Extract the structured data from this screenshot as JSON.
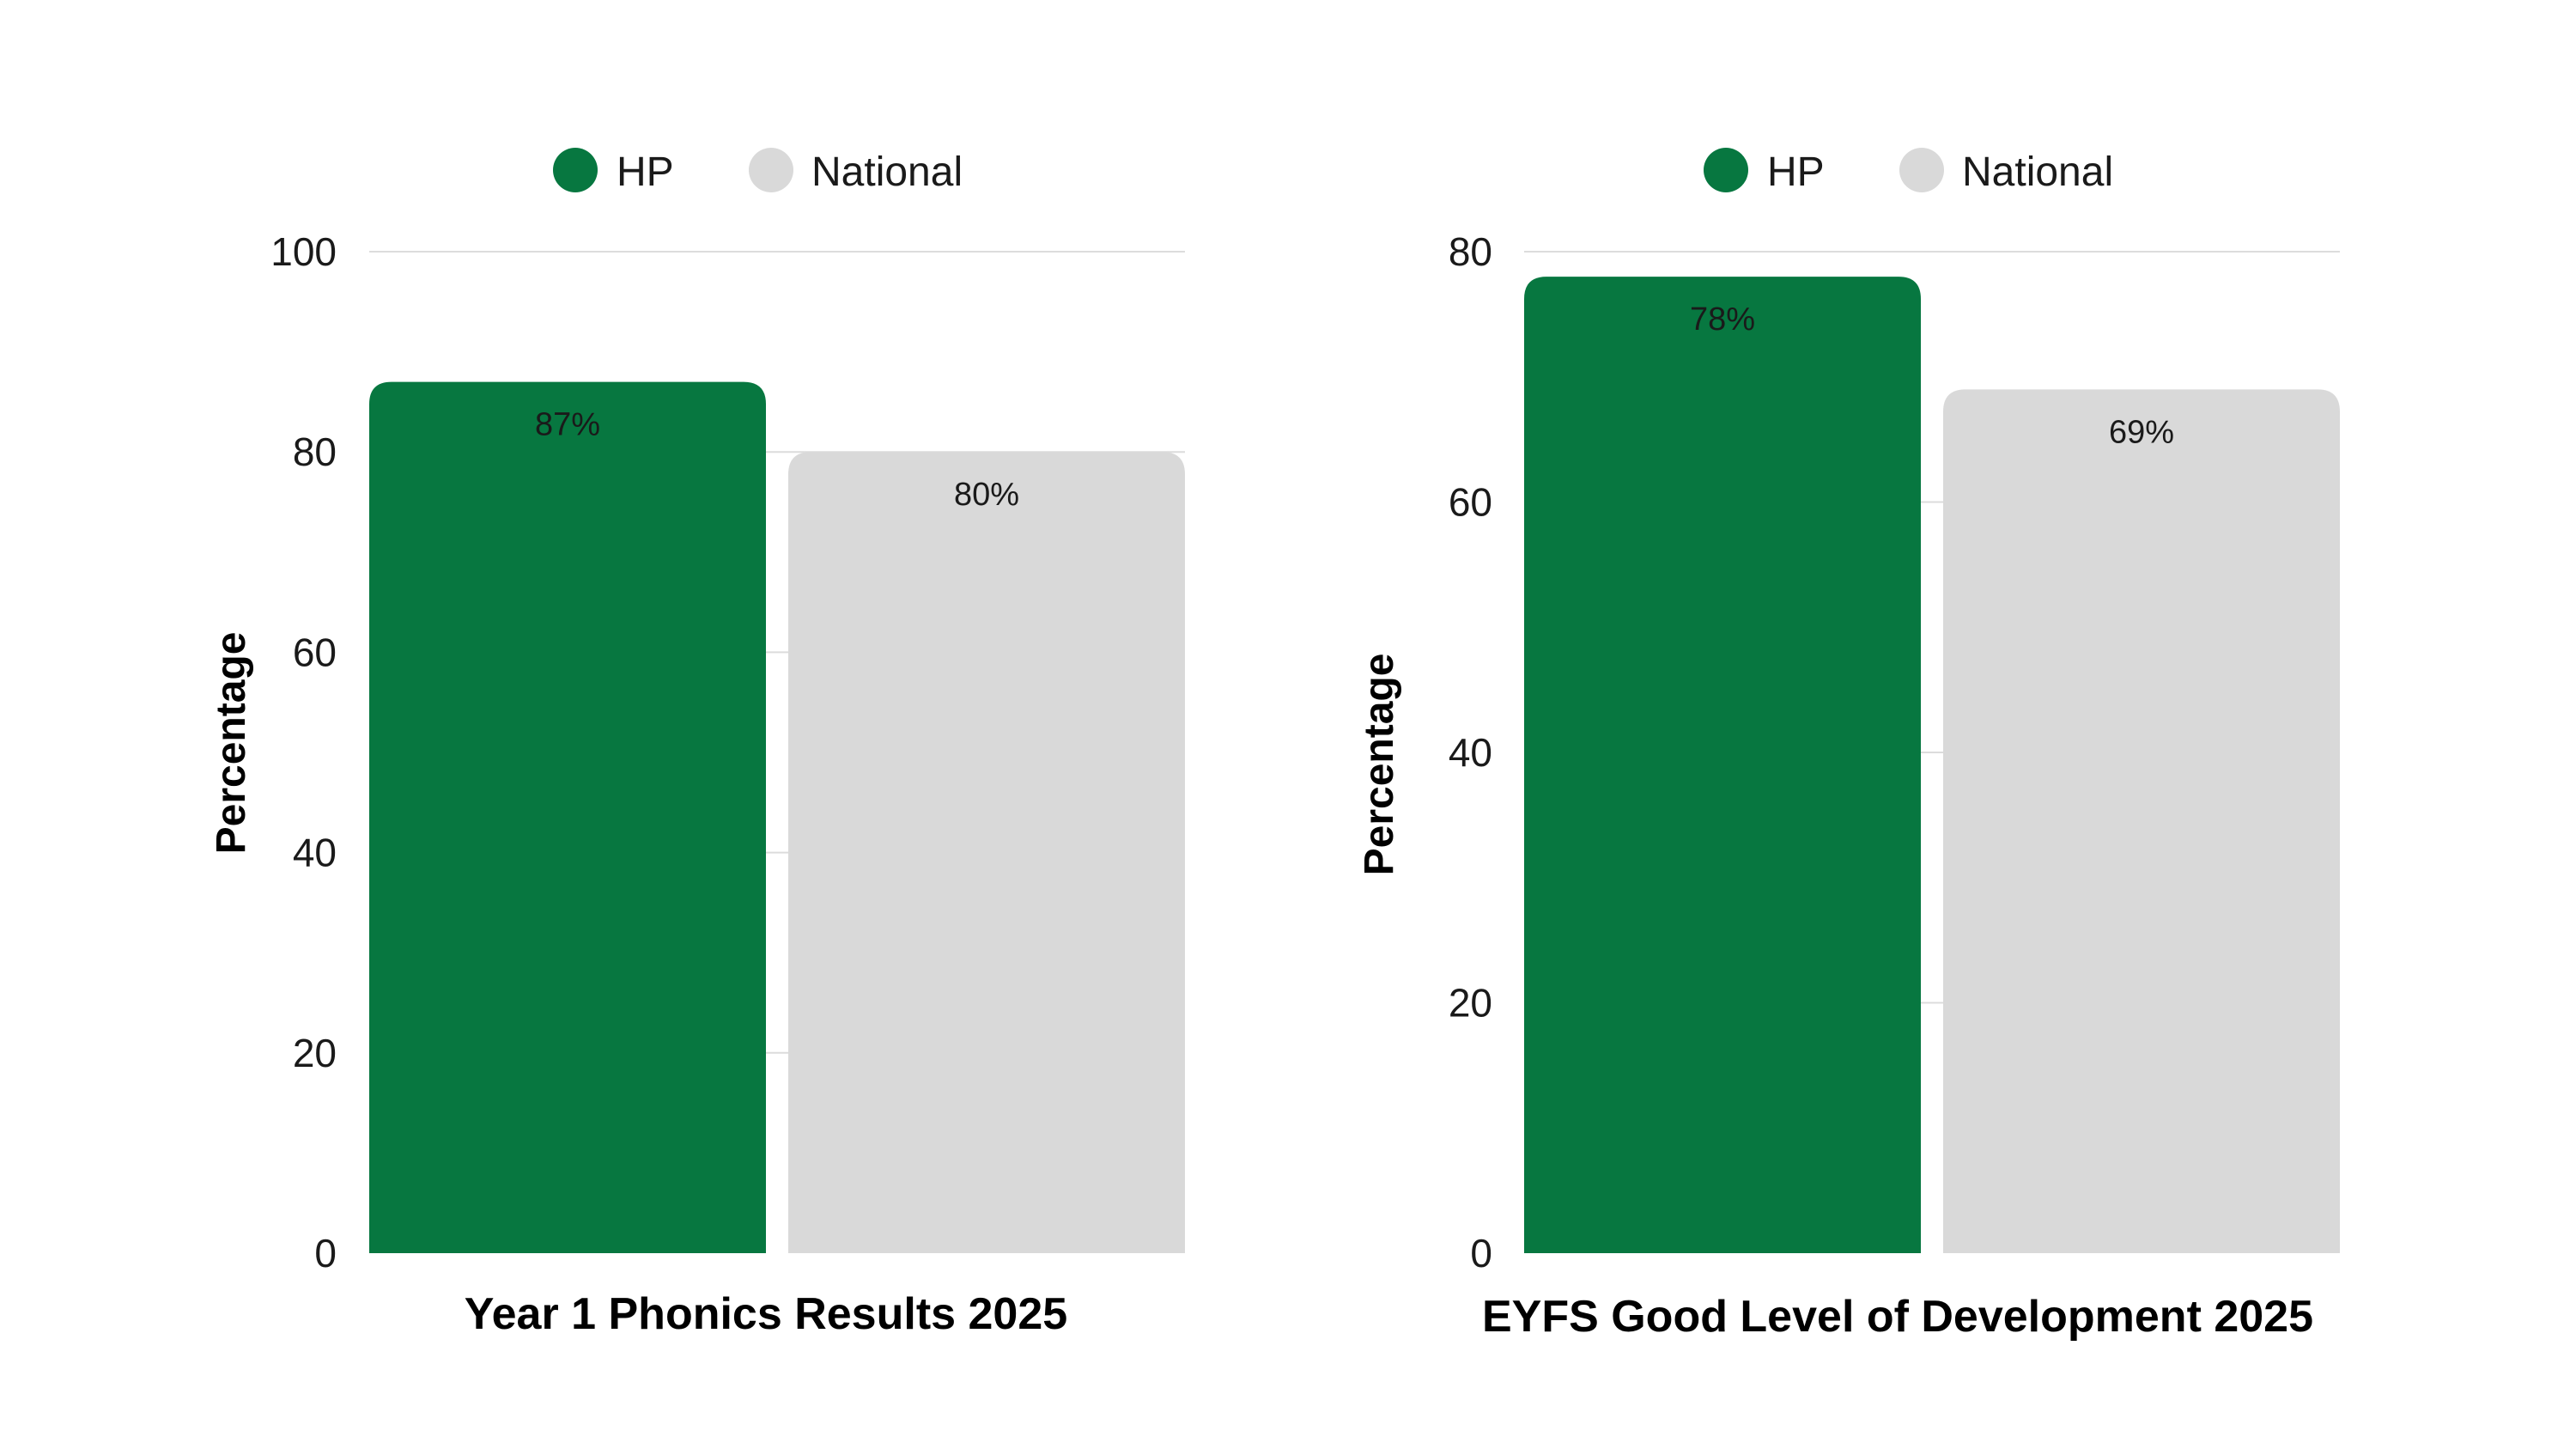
{
  "colors": {
    "hp": "#077740",
    "national": "#d9d9d9"
  },
  "chart_data": [
    {
      "type": "bar",
      "categories": [
        "Year 1 Phonics Results 2025"
      ],
      "series": [
        {
          "name": "HP",
          "values": [
            87
          ],
          "labels": [
            "87%"
          ]
        },
        {
          "name": "National",
          "values": [
            80
          ],
          "labels": [
            "80%"
          ]
        }
      ],
      "xlabel": "Year 1 Phonics Results 2025",
      "ylabel": "Percentage",
      "ylim": [
        0,
        100
      ],
      "yticks": [
        0,
        20,
        40,
        60,
        80,
        100
      ],
      "grid": true,
      "legend_position": "top"
    },
    {
      "type": "bar",
      "categories": [
        "EYFS Good Level of Development 2025"
      ],
      "series": [
        {
          "name": "HP",
          "values": [
            78
          ],
          "labels": [
            "78%"
          ]
        },
        {
          "name": "National",
          "values": [
            69
          ],
          "labels": [
            "69%"
          ]
        }
      ],
      "xlabel": "EYFS Good Level of Development 2025",
      "ylabel": "Percentage",
      "ylim": [
        0,
        80
      ],
      "yticks": [
        0,
        20,
        40,
        60,
        80
      ],
      "grid": true,
      "legend_position": "top"
    }
  ]
}
